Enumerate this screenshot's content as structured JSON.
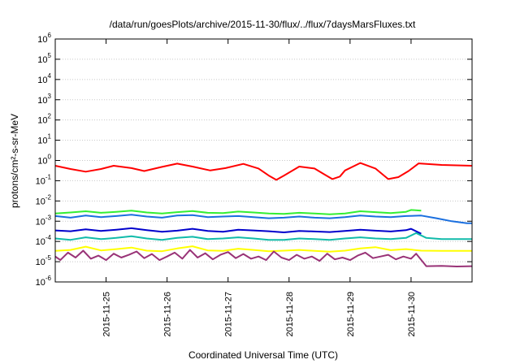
{
  "chart_data": {
    "type": "line",
    "title": "/data/run/goesPlots/archive/2015-11-30/flux/../flux/7daysMarsFluxes.txt",
    "xlabel": "Coordinated Universal Time (UTC)",
    "ylabel": "protons/cm²-s-sr-MeV",
    "y_scale": "log",
    "ylim": [
      1e-06,
      1000000.0
    ],
    "y_ticks": [
      {
        "base": "10",
        "exp": "-6"
      },
      {
        "base": "10",
        "exp": "-5"
      },
      {
        "base": "10",
        "exp": "-4"
      },
      {
        "base": "10",
        "exp": "-3"
      },
      {
        "base": "10",
        "exp": "-2"
      },
      {
        "base": "10",
        "exp": "-1"
      },
      {
        "base": "10",
        "exp": "0"
      },
      {
        "base": "10",
        "exp": "1"
      },
      {
        "base": "10",
        "exp": "2"
      },
      {
        "base": "10",
        "exp": "3"
      },
      {
        "base": "10",
        "exp": "4"
      },
      {
        "base": "10",
        "exp": "5"
      },
      {
        "base": "10",
        "exp": "6"
      }
    ],
    "xlim": [
      "2015-11-24 04:00",
      "2015-11-31 00:00"
    ],
    "x_ticks": [
      "2015-11-25",
      "2015-11-26",
      "2015-11-27",
      "2015-11-28",
      "2015-11-29",
      "2015-11-30"
    ],
    "grid": "horizontal",
    "legend": "none",
    "series": [
      {
        "color": "#ff0000",
        "x": [
          "2015-11-24 04:00",
          "2015-11-24 10:00",
          "2015-11-24 16:00",
          "2015-11-24 22:00",
          "2015-11-25 03:00",
          "2015-11-25 10:00",
          "2015-11-25 15:00",
          "2015-11-25 22:00",
          "2015-11-26 04:00",
          "2015-11-26 10:00",
          "2015-11-26 17:00",
          "2015-11-26 23:00",
          "2015-11-27 06:00",
          "2015-11-27 12:00",
          "2015-11-27 16:00",
          "2015-11-27 19:00",
          "2015-11-27 22:00",
          "2015-11-28 04:00",
          "2015-11-28 10:00",
          "2015-11-28 14:00",
          "2015-11-28 17:00",
          "2015-11-28 20:00",
          "2015-11-28 22:00",
          "2015-11-29 04:00",
          "2015-11-29 10:00",
          "2015-11-29 15:00",
          "2015-11-29 19:00",
          "2015-11-29 23:00",
          "2015-11-30 03:00",
          "2015-11-30 12:00",
          "2015-11-31 00:00"
        ],
        "y": [
          0.55,
          0.38,
          0.28,
          0.38,
          0.55,
          0.42,
          0.3,
          0.48,
          0.7,
          0.5,
          0.32,
          0.42,
          0.68,
          0.4,
          0.18,
          0.11,
          0.18,
          0.5,
          0.4,
          0.2,
          0.12,
          0.16,
          0.32,
          0.75,
          0.4,
          0.12,
          0.15,
          0.3,
          0.72,
          0.6,
          0.55
        ]
      },
      {
        "color": "#33ee33",
        "x": [
          "2015-11-24 04:00",
          "2015-11-24 10:00",
          "2015-11-24 16:00",
          "2015-11-24 22:00",
          "2015-11-25 04:00",
          "2015-11-25 10:00",
          "2015-11-25 16:00",
          "2015-11-25 22:00",
          "2015-11-26 04:00",
          "2015-11-26 10:00",
          "2015-11-26 16:00",
          "2015-11-26 22:00",
          "2015-11-27 04:00",
          "2015-11-27 10:00",
          "2015-11-27 16:00",
          "2015-11-27 22:00",
          "2015-11-28 04:00",
          "2015-11-28 10:00",
          "2015-11-28 16:00",
          "2015-11-28 22:00",
          "2015-11-29 04:00",
          "2015-11-29 10:00",
          "2015-11-29 16:00",
          "2015-11-29 22:00",
          "2015-11-30 00:00",
          "2015-11-30 04:00"
        ],
        "y": [
          0.0024,
          0.0027,
          0.0031,
          0.0026,
          0.0029,
          0.0033,
          0.0027,
          0.0024,
          0.0028,
          0.0032,
          0.0026,
          0.0025,
          0.003,
          0.0027,
          0.0024,
          0.0023,
          0.0026,
          0.0024,
          0.0022,
          0.0024,
          0.0031,
          0.0028,
          0.0025,
          0.0029,
          0.0036,
          0.0033
        ]
      },
      {
        "color": "#1a6fdf",
        "x": [
          "2015-11-24 04:00",
          "2015-11-24 10:00",
          "2015-11-24 16:00",
          "2015-11-24 22:00",
          "2015-11-25 04:00",
          "2015-11-25 10:00",
          "2015-11-25 16:00",
          "2015-11-25 22:00",
          "2015-11-26 04:00",
          "2015-11-26 10:00",
          "2015-11-26 16:00",
          "2015-11-26 22:00",
          "2015-11-27 04:00",
          "2015-11-27 10:00",
          "2015-11-27 16:00",
          "2015-11-27 22:00",
          "2015-11-28 04:00",
          "2015-11-28 10:00",
          "2015-11-28 16:00",
          "2015-11-28 22:00",
          "2015-11-29 04:00",
          "2015-11-29 10:00",
          "2015-11-29 16:00",
          "2015-11-29 22:00",
          "2015-11-30 04:00",
          "2015-11-30 10:00",
          "2015-11-30 16:00",
          "2015-11-30 22:00",
          "2015-11-31 00:00"
        ],
        "y": [
          0.0018,
          0.0015,
          0.0019,
          0.0016,
          0.0018,
          0.0021,
          0.0017,
          0.0015,
          0.0019,
          0.002,
          0.0016,
          0.0017,
          0.0018,
          0.0016,
          0.0014,
          0.0015,
          0.0017,
          0.0015,
          0.0014,
          0.0016,
          0.0019,
          0.0017,
          0.0016,
          0.0018,
          0.0019,
          0.0014,
          0.001,
          0.0008,
          0.0008
        ]
      },
      {
        "color": "#0000cc",
        "x": [
          "2015-11-24 04:00",
          "2015-11-24 10:00",
          "2015-11-24 16:00",
          "2015-11-24 22:00",
          "2015-11-25 04:00",
          "2015-11-25 10:00",
          "2015-11-25 16:00",
          "2015-11-25 22:00",
          "2015-11-26 04:00",
          "2015-11-26 10:00",
          "2015-11-26 16:00",
          "2015-11-26 22:00",
          "2015-11-27 04:00",
          "2015-11-27 10:00",
          "2015-11-27 16:00",
          "2015-11-27 22:00",
          "2015-11-28 04:00",
          "2015-11-28 10:00",
          "2015-11-28 16:00",
          "2015-11-28 22:00",
          "2015-11-29 04:00",
          "2015-11-29 10:00",
          "2015-11-29 16:00",
          "2015-11-29 22:00",
          "2015-11-30 00:00",
          "2015-11-30 04:00"
        ],
        "y": [
          0.00035,
          0.00032,
          0.0004,
          0.00033,
          0.00038,
          0.00045,
          0.00036,
          0.0003,
          0.00034,
          0.00042,
          0.00033,
          0.0003,
          0.00038,
          0.00035,
          0.00032,
          0.00028,
          0.00033,
          0.00031,
          0.00029,
          0.00033,
          0.00038,
          0.00034,
          0.00031,
          0.00036,
          0.00042,
          0.00024
        ]
      },
      {
        "color": "#11bbaa",
        "x": [
          "2015-11-24 04:00",
          "2015-11-24 10:00",
          "2015-11-24 16:00",
          "2015-11-24 22:00",
          "2015-11-25 04:00",
          "2015-11-25 10:00",
          "2015-11-25 16:00",
          "2015-11-25 22:00",
          "2015-11-26 04:00",
          "2015-11-26 10:00",
          "2015-11-26 16:00",
          "2015-11-26 22:00",
          "2015-11-27 04:00",
          "2015-11-27 10:00",
          "2015-11-27 16:00",
          "2015-11-27 22:00",
          "2015-11-28 04:00",
          "2015-11-28 10:00",
          "2015-11-28 16:00",
          "2015-11-28 22:00",
          "2015-11-29 04:00",
          "2015-11-29 10:00",
          "2015-11-29 16:00",
          "2015-11-29 22:00",
          "2015-11-30 02:00",
          "2015-11-30 06:00",
          "2015-11-30 12:00",
          "2015-11-30 18:00",
          "2015-11-31 00:00"
        ],
        "y": [
          0.00014,
          0.00012,
          0.00016,
          0.00013,
          0.00015,
          0.00018,
          0.00014,
          0.00012,
          0.00015,
          0.00017,
          0.00013,
          0.00014,
          0.00016,
          0.00014,
          0.00012,
          0.00012,
          0.00014,
          0.00013,
          0.00012,
          0.00014,
          0.00016,
          0.00014,
          0.00013,
          0.00015,
          0.00026,
          0.00015,
          0.00013,
          0.00013,
          0.00013
        ]
      },
      {
        "color": "#ffff00",
        "x": [
          "2015-11-24 04:00",
          "2015-11-24 10:00",
          "2015-11-24 16:00",
          "2015-11-24 22:00",
          "2015-11-25 04:00",
          "2015-11-25 10:00",
          "2015-11-25 16:00",
          "2015-11-25 22:00",
          "2015-11-26 04:00",
          "2015-11-26 10:00",
          "2015-11-26 16:00",
          "2015-11-26 22:00",
          "2015-11-27 04:00",
          "2015-11-27 10:00",
          "2015-11-27 16:00",
          "2015-11-27 22:00",
          "2015-11-28 04:00",
          "2015-11-28 10:00",
          "2015-11-28 16:00",
          "2015-11-28 22:00",
          "2015-11-29 04:00",
          "2015-11-29 10:00",
          "2015-11-29 16:00",
          "2015-11-29 22:00",
          "2015-11-30 04:00",
          "2015-11-30 12:00",
          "2015-11-31 00:00"
        ],
        "y": [
          3.4e-05,
          3.8e-05,
          5.5e-05,
          3.6e-05,
          4.2e-05,
          5e-05,
          3.5e-05,
          3.3e-05,
          4.5e-05,
          5.8e-05,
          3.6e-05,
          3.4e-05,
          4.4e-05,
          3.8e-05,
          3.3e-05,
          3.5e-05,
          3.8e-05,
          3.4e-05,
          3.1e-05,
          3.5e-05,
          4.5e-05,
          5.2e-05,
          3.7e-05,
          4.2e-05,
          3.5e-05,
          3.4e-05,
          3.4e-05
        ]
      },
      {
        "color": "#993377",
        "x": [
          "2015-11-24 04:00",
          "2015-11-24 06:00",
          "2015-11-24 09:00",
          "2015-11-24 12:00",
          "2015-11-24 15:00",
          "2015-11-24 18:00",
          "2015-11-24 21:00",
          "2015-11-25 00:00",
          "2015-11-25 03:00",
          "2015-11-25 06:00",
          "2015-11-25 09:00",
          "2015-11-25 12:00",
          "2015-11-25 15:00",
          "2015-11-25 18:00",
          "2015-11-25 21:00",
          "2015-11-26 00:00",
          "2015-11-26 03:00",
          "2015-11-26 06:00",
          "2015-11-26 09:00",
          "2015-11-26 12:00",
          "2015-11-26 15:00",
          "2015-11-26 18:00",
          "2015-11-26 21:00",
          "2015-11-27 00:00",
          "2015-11-27 03:00",
          "2015-11-27 06:00",
          "2015-11-27 09:00",
          "2015-11-27 12:00",
          "2015-11-27 15:00",
          "2015-11-27 18:00",
          "2015-11-27 21:00",
          "2015-11-28 00:00",
          "2015-11-28 03:00",
          "2015-11-28 06:00",
          "2015-11-28 09:00",
          "2015-11-28 12:00",
          "2015-11-28 15:00",
          "2015-11-28 18:00",
          "2015-11-28 21:00",
          "2015-11-29 00:00",
          "2015-11-29 03:00",
          "2015-11-29 06:00",
          "2015-11-29 09:00",
          "2015-11-29 12:00",
          "2015-11-29 15:00",
          "2015-11-29 18:00",
          "2015-11-29 21:00",
          "2015-11-30 00:00",
          "2015-11-30 02:00",
          "2015-11-30 06:00",
          "2015-11-30 12:00",
          "2015-11-30 18:00",
          "2015-11-31 00:00"
        ],
        "y": [
          1.8e-05,
          1.2e-05,
          2.8e-05,
          1.6e-05,
          3.5e-05,
          1.4e-05,
          2e-05,
          1.2e-05,
          2.5e-05,
          1.6e-05,
          2.2e-05,
          3.2e-05,
          1.5e-05,
          2.4e-05,
          1.2e-05,
          1.8e-05,
          2.8e-05,
          1.4e-05,
          3.8e-05,
          1.6e-05,
          2.6e-05,
          1.3e-05,
          2.2e-05,
          3e-05,
          1.5e-05,
          2.4e-05,
          1.4e-05,
          1.8e-05,
          1.2e-05,
          3.2e-05,
          1.6e-05,
          1.2e-05,
          2.2e-05,
          1.4e-05,
          1.8e-05,
          1.1e-05,
          2.5e-05,
          1.3e-05,
          1.6e-05,
          1.2e-05,
          2e-05,
          2.8e-05,
          1.5e-05,
          1.8e-05,
          2.2e-05,
          1.3e-05,
          1.8e-05,
          1.4e-05,
          2.5e-05,
          6e-06,
          6.2e-06,
          5.8e-06,
          6e-06
        ]
      }
    ]
  }
}
